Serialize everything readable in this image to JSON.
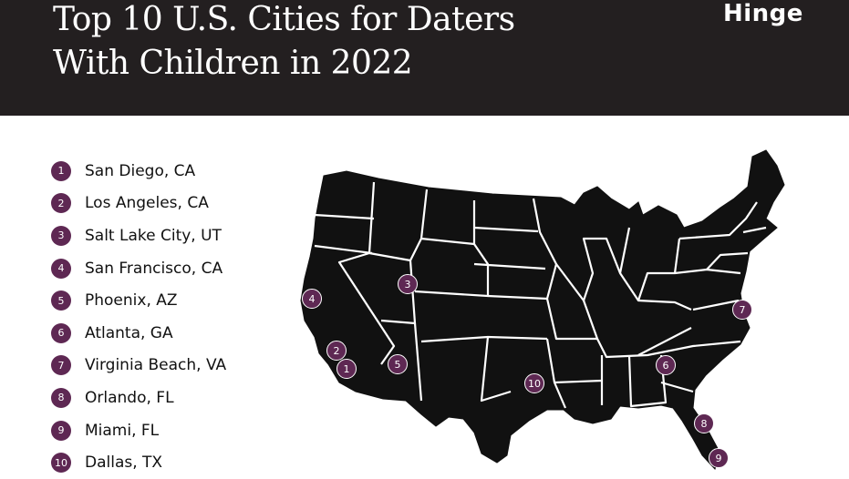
{
  "header": {
    "title_line1": "Top 10 U.S. Cities for Daters",
    "title_line2": "With Children in 2022",
    "logo": "Hinge"
  },
  "cities": [
    {
      "rank": "1",
      "name": "San Diego, CA"
    },
    {
      "rank": "2",
      "name": "Los Angeles, CA"
    },
    {
      "rank": "3",
      "name": "Salt Lake City, UT"
    },
    {
      "rank": "4",
      "name": "San Francisco, CA"
    },
    {
      "rank": "5",
      "name": "Phoenix, AZ"
    },
    {
      "rank": "6",
      "name": "Atlanta, GA"
    },
    {
      "rank": "7",
      "name": "Virginia Beach, VA"
    },
    {
      "rank": "8",
      "name": "Orlando, FL"
    },
    {
      "rank": "9",
      "name": "Miami, FL"
    },
    {
      "rank": "10",
      "name": "Dallas, TX"
    }
  ],
  "colors": {
    "header_bg": "#231f20",
    "pin": "#5e2853",
    "map_fill": "#111111",
    "state_border": "#ffffff"
  }
}
